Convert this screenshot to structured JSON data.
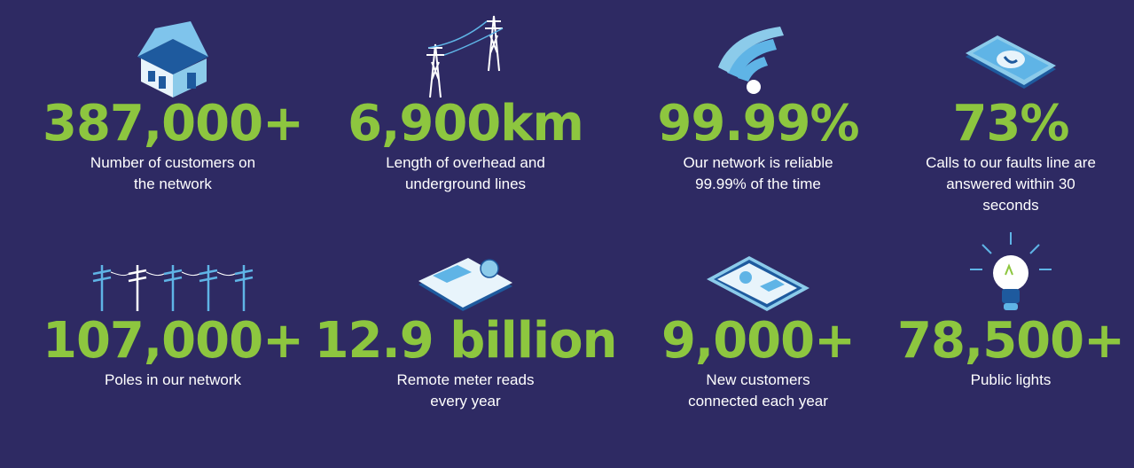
{
  "stats": [
    {
      "value": "387,000+",
      "label": [
        "Number of customers on",
        "the network"
      ],
      "icon": "house-icon"
    },
    {
      "value": "6,900km",
      "label": [
        "Length of overhead and",
        "underground lines"
      ],
      "icon": "pylon-icon"
    },
    {
      "value": "99.99%",
      "label": [
        "Our network is reliable",
        "99.99% of the time"
      ],
      "icon": "wifi-icon"
    },
    {
      "value": "73%",
      "label": [
        "Calls to our faults line are",
        "answered within 30",
        "seconds"
      ],
      "icon": "phone-icon"
    },
    {
      "value": "107,000+",
      "label": [
        "Poles in our network"
      ],
      "icon": "poles-icon"
    },
    {
      "value": "12.9 billion",
      "label": [
        "Remote meter reads",
        "every year"
      ],
      "icon": "meter-icon"
    },
    {
      "value": "9,000+",
      "label": [
        "New customers",
        "connected each year"
      ],
      "icon": "tablet-icon"
    },
    {
      "value": "78,500+",
      "label": [
        "Public lights"
      ],
      "icon": "lightbulb-icon"
    }
  ],
  "colors": {
    "background": "#2e2a63",
    "accent": "#8dc63f",
    "icon": "#5fb4e6"
  }
}
